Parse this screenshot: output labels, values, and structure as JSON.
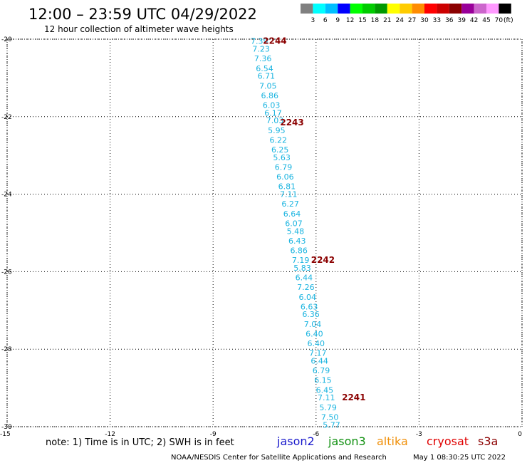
{
  "header": {
    "title": "12:00 – 23:59 UTC 04/29/2022",
    "subtitle": "12 hour collection of altimeter wave heights"
  },
  "color_scale": {
    "colors": [
      "#808080",
      "#00ffff",
      "#00bfff",
      "#0000ff",
      "#00ff00",
      "#00cc00",
      "#009900",
      "#ffff00",
      "#ffcc00",
      "#ff8c00",
      "#ff0000",
      "#cc0000",
      "#8b0000",
      "#990099",
      "#cc66cc",
      "#ff99ff",
      "#000000"
    ],
    "labels": [
      "3",
      "6",
      "9",
      "12",
      "15",
      "18",
      "21",
      "24",
      "27",
      "30",
      "33",
      "36",
      "39",
      "42",
      "45",
      "70"
    ],
    "unit": "(ft)"
  },
  "chart_data": {
    "type": "scatter",
    "xlim": [
      -15,
      0
    ],
    "ylim": [
      -30,
      -20
    ],
    "xticks": [
      "-15",
      "-12",
      "-9",
      "-6",
      "-3",
      "0"
    ],
    "yticks": [
      "-20",
      "-22",
      "-24",
      "-26",
      "-28",
      "-30"
    ],
    "grid": true,
    "point_color": "#1ab4e0",
    "pass_color": "#8b0000",
    "points": [
      {
        "x": -7.65,
        "y": -20.05,
        "label": "7.39"
      },
      {
        "x": -7.6,
        "y": -20.25,
        "label": "7.23"
      },
      {
        "x": -7.55,
        "y": -20.5,
        "label": "7.36"
      },
      {
        "x": -7.5,
        "y": -20.75,
        "label": "6.54"
      },
      {
        "x": -7.45,
        "y": -20.95,
        "label": "6.71"
      },
      {
        "x": -7.4,
        "y": -21.2,
        "label": "7.05"
      },
      {
        "x": -7.35,
        "y": -21.45,
        "label": "6.86"
      },
      {
        "x": -7.3,
        "y": -21.7,
        "label": "6.03"
      },
      {
        "x": -7.25,
        "y": -21.9,
        "label": "6.17"
      },
      {
        "x": -7.2,
        "y": -22.1,
        "label": "7.03"
      },
      {
        "x": -7.15,
        "y": -22.35,
        "label": "5.95"
      },
      {
        "x": -7.1,
        "y": -22.6,
        "label": "6.22"
      },
      {
        "x": -7.05,
        "y": -22.85,
        "label": "6.25"
      },
      {
        "x": -7.0,
        "y": -23.05,
        "label": "5.63"
      },
      {
        "x": -6.95,
        "y": -23.3,
        "label": "6.79"
      },
      {
        "x": -6.9,
        "y": -23.55,
        "label": "6.06"
      },
      {
        "x": -6.85,
        "y": -23.8,
        "label": "6.81"
      },
      {
        "x": -6.8,
        "y": -24.0,
        "label": "7.11"
      },
      {
        "x": -6.75,
        "y": -24.25,
        "label": "6.27"
      },
      {
        "x": -6.7,
        "y": -24.5,
        "label": "6.64"
      },
      {
        "x": -6.65,
        "y": -24.75,
        "label": "6.07"
      },
      {
        "x": -6.6,
        "y": -24.95,
        "label": "5.48"
      },
      {
        "x": -6.55,
        "y": -25.2,
        "label": "6.43"
      },
      {
        "x": -6.5,
        "y": -25.45,
        "label": "6.86"
      },
      {
        "x": -6.45,
        "y": -25.7,
        "label": "7.19"
      },
      {
        "x": -6.4,
        "y": -25.9,
        "label": "5.83"
      },
      {
        "x": -6.35,
        "y": -26.15,
        "label": "6.44"
      },
      {
        "x": -6.3,
        "y": -26.4,
        "label": "7.26"
      },
      {
        "x": -6.25,
        "y": -26.65,
        "label": "6.04"
      },
      {
        "x": -6.2,
        "y": -26.9,
        "label": "6.63"
      },
      {
        "x": -6.15,
        "y": -27.1,
        "label": "6.36"
      },
      {
        "x": -6.1,
        "y": -27.35,
        "label": "7.04"
      },
      {
        "x": -6.05,
        "y": -27.6,
        "label": "6.40"
      },
      {
        "x": -6.0,
        "y": -27.85,
        "label": "6.40"
      },
      {
        "x": -5.95,
        "y": -28.1,
        "label": "7.17"
      },
      {
        "x": -5.9,
        "y": -28.3,
        "label": "6.44"
      },
      {
        "x": -5.85,
        "y": -28.55,
        "label": "6.79"
      },
      {
        "x": -5.8,
        "y": -28.8,
        "label": "6.15"
      },
      {
        "x": -5.75,
        "y": -29.05,
        "label": "6.45"
      },
      {
        "x": -5.7,
        "y": -29.25,
        "label": "7.11"
      },
      {
        "x": -5.65,
        "y": -29.5,
        "label": "5.79"
      },
      {
        "x": -5.6,
        "y": -29.75,
        "label": "7.50"
      },
      {
        "x": -5.55,
        "y": -29.95,
        "label": "5.77"
      }
    ],
    "passes": [
      {
        "x": -7.2,
        "y": -20.05,
        "label": "2244"
      },
      {
        "x": -6.7,
        "y": -22.15,
        "label": "2243"
      },
      {
        "x": -5.8,
        "y": -25.7,
        "label": "2242"
      },
      {
        "x": -4.9,
        "y": -29.25,
        "label": "2241"
      }
    ]
  },
  "footer": {
    "note": "note: 1) Time is in UTC; 2) SWH is in feet",
    "satellites": [
      {
        "name": "jason2",
        "color": "#1a1acc"
      },
      {
        "name": "jason3",
        "color": "#109010"
      },
      {
        "name": "altika",
        "color": "#f0900a"
      },
      {
        "name": "cryosat",
        "color": "#e00000"
      },
      {
        "name": "s3a",
        "color": "#8b0000"
      }
    ],
    "credit": "NOAA/NESDIS Center for Satellite Applications and Research",
    "timestamp": "May  1 08:30:25 UTC 2022"
  }
}
